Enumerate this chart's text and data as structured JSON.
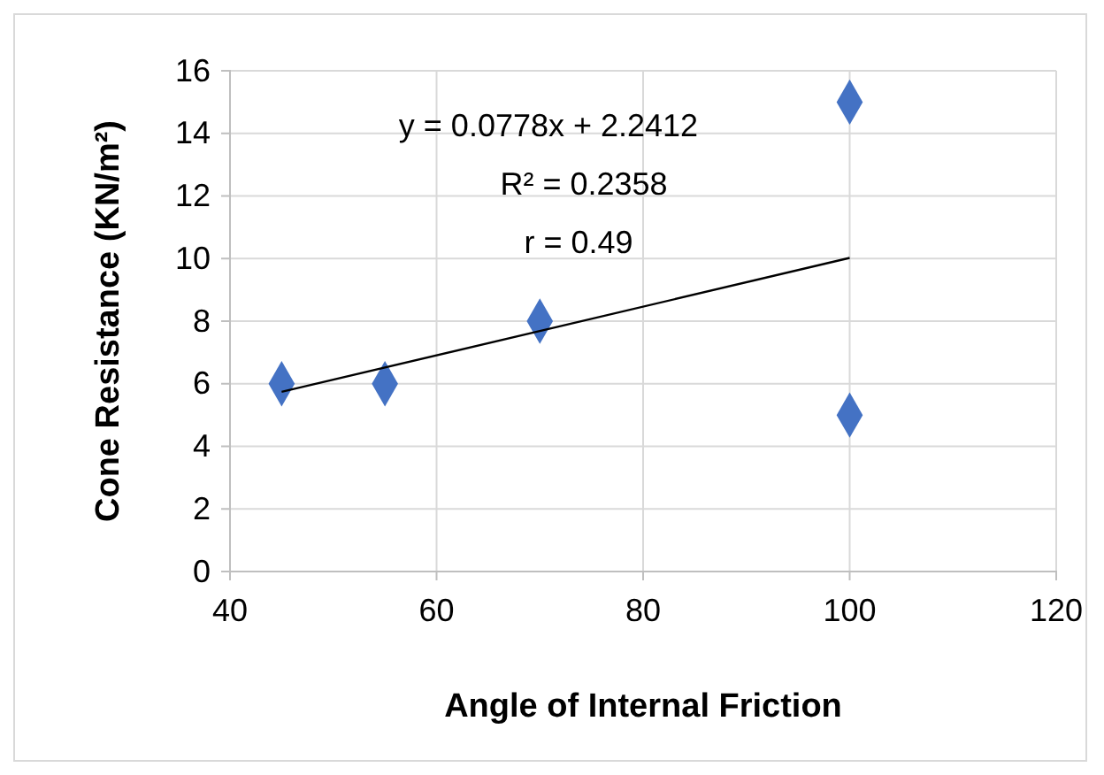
{
  "chart_data": {
    "type": "scatter",
    "xlabel": "Angle of Internal Friction",
    "ylabel": "Cone Resistance (KN/m²)",
    "xlim": [
      40,
      120
    ],
    "xticks": [
      40,
      60,
      80,
      100,
      120
    ],
    "ylim": [
      0,
      16
    ],
    "yticks": [
      0,
      2,
      4,
      6,
      8,
      10,
      12,
      14,
      16
    ],
    "grid": true,
    "series": [
      {
        "marker": "diamond",
        "color": "#4472c4",
        "x": [
          45,
          55,
          70,
          100,
          100
        ],
        "values": [
          6,
          6,
          8,
          15,
          5
        ]
      },
      {
        "type": "line",
        "marker": "none",
        "color": "#000000",
        "x": [
          45,
          100
        ],
        "values": [
          5.74,
          10.02
        ]
      }
    ],
    "annotations": [
      "y = 0.0778x + 2.2412",
      "R² = 0.2358",
      "r = 0.49"
    ]
  }
}
